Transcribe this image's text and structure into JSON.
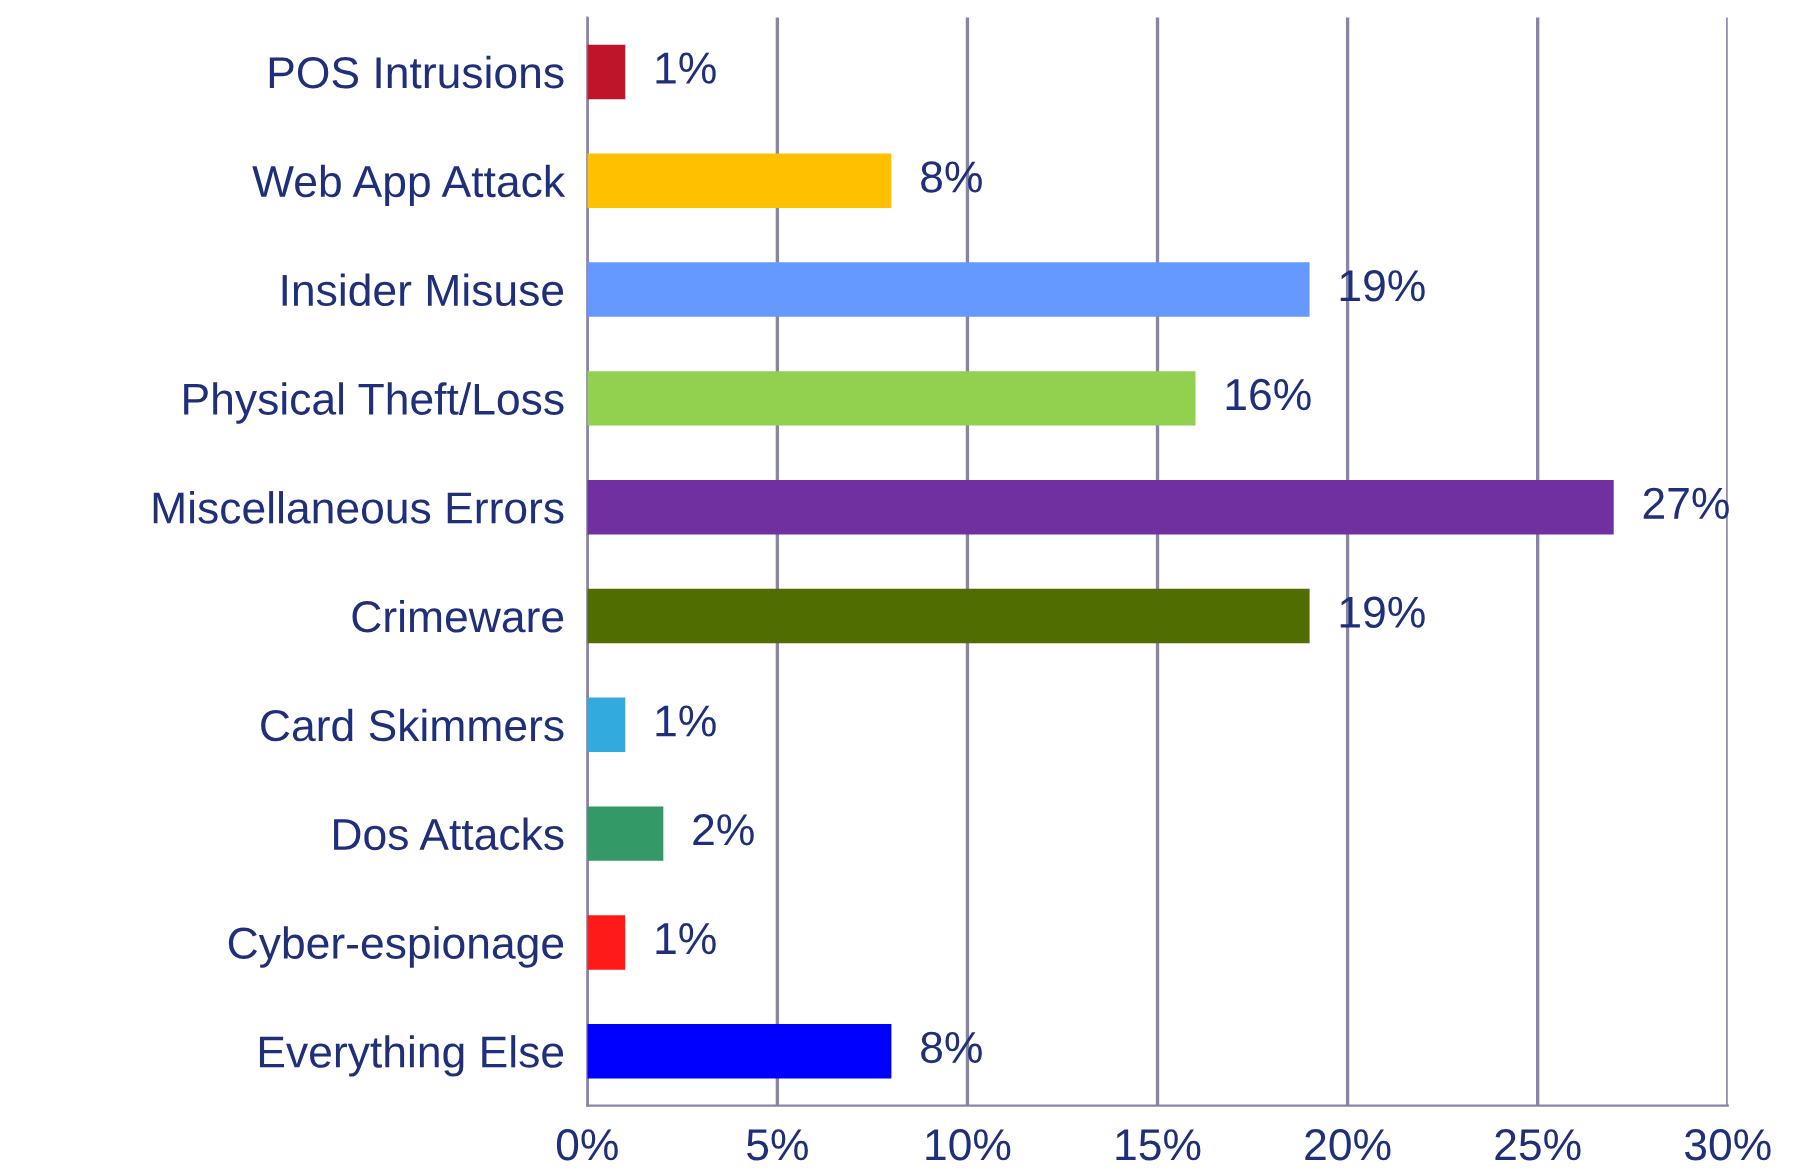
{
  "chart_data": {
    "type": "bar",
    "orientation": "horizontal",
    "categories": [
      "POS Intrusions",
      "Web App Attack",
      "Insider Misuse",
      "Physical Theft/Loss",
      "Miscellaneous Errors",
      "Crimeware",
      "Card Skimmers",
      "Dos Attacks",
      "Cyber-espionage",
      "Everything Else"
    ],
    "values": [
      1,
      8,
      19,
      16,
      27,
      19,
      1,
      2,
      1,
      8
    ],
    "colors": [
      "#c0142a",
      "#ffc000",
      "#6699ff",
      "#92d050",
      "#7030a0",
      "#4f6d00",
      "#33aadd",
      "#339966",
      "#ff1a1a",
      "#0000ff"
    ],
    "value_labels": [
      "1%",
      "8%",
      "19%",
      "16%",
      "27%",
      "19%",
      "1%",
      "2%",
      "1%",
      "8%"
    ],
    "xlim": [
      0,
      30
    ],
    "xticks": [
      {
        "value": 0,
        "label": "0%"
      },
      {
        "value": 5,
        "label": "5%"
      },
      {
        "value": 10,
        "label": "10%"
      },
      {
        "value": 15,
        "label": "15%"
      },
      {
        "value": 20,
        "label": "20%"
      },
      {
        "value": 25,
        "label": "25%"
      },
      {
        "value": 30,
        "label": "30%"
      }
    ],
    "grid": "x",
    "legend": false
  }
}
